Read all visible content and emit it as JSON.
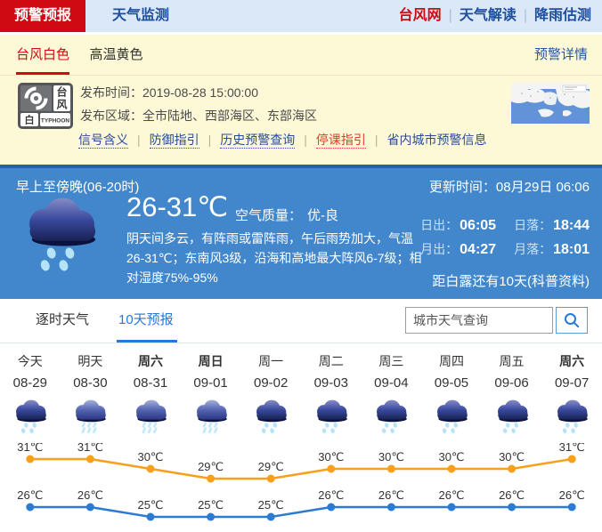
{
  "nav": {
    "separator": "|",
    "tabs": [
      {
        "label": "预警预报",
        "active": true
      },
      {
        "label": "天气监测",
        "active": false
      }
    ],
    "links": [
      "台风网",
      "天气解读",
      "降雨估测"
    ]
  },
  "warning": {
    "tabs": [
      {
        "label": "台风白色",
        "active": true
      },
      {
        "label": "高温黄色",
        "active": false
      }
    ],
    "detail_link": "预警详情",
    "icon": {
      "char_top": "台",
      "char_mid": "风",
      "char_bottom_left": "白",
      "char_bottom_right": "TYPHOON"
    },
    "publish": [
      {
        "label": "发布时间：",
        "value": "2019-08-28 15:00:00"
      },
      {
        "label": "发布区域：",
        "value": "全市陆地、西部海区、东部海区"
      }
    ],
    "links_separator": "|",
    "links": [
      {
        "label": "信号含义",
        "style": "dotblue"
      },
      {
        "label": "防御指引",
        "style": "dotblue"
      },
      {
        "label": "历史预警查询",
        "style": "dotblue"
      },
      {
        "label": "停课指引",
        "style": "dotred"
      },
      {
        "label": "省内城市预警信息",
        "style": "plainblue"
      }
    ]
  },
  "current": {
    "period": "早上至傍晚(06-20时)",
    "update_label": "更新时间：",
    "update_time": "08月29日 06:06",
    "temp_range": "26-31℃",
    "air_quality_label": "空气质量：",
    "air_quality_value": "优-良",
    "description": "阴天间多云，有阵雨或雷阵雨，午后雨势加大，气温26-31℃；东南风3级，沿海和高地最大阵风6-7级；相对湿度75%-95%",
    "sun_moon": [
      {
        "label": "日出：",
        "value": "06:05"
      },
      {
        "label": "日落：",
        "value": "18:44"
      },
      {
        "label": "月出：",
        "value": "04:27"
      },
      {
        "label": "月落：",
        "value": "18:01"
      }
    ],
    "note": "距白露还有10天(科普资料)"
  },
  "forecast": {
    "tabs": [
      {
        "label": "逐时天气",
        "active": false
      },
      {
        "label": "10天预报",
        "active": true
      }
    ],
    "search": {
      "placeholder": "城市天气查询"
    }
  },
  "chart_data": {
    "type": "line",
    "title": "10天预报",
    "categories": [
      "今天",
      "明天",
      "周六",
      "周日",
      "周一",
      "周二",
      "周三",
      "周四",
      "周五",
      "周六"
    ],
    "dates": [
      "08-29",
      "08-30",
      "08-31",
      "09-01",
      "09-02",
      "09-03",
      "09-04",
      "09-05",
      "09-06",
      "09-07"
    ],
    "weekend_bold": [
      false,
      false,
      true,
      true,
      false,
      false,
      false,
      false,
      false,
      true
    ],
    "icons": [
      "shower",
      "heavy-rain",
      "heavy-rain",
      "heavy-rain",
      "shower",
      "shower",
      "shower",
      "shower",
      "shower",
      "shower"
    ],
    "unit": "℃",
    "series": [
      {
        "name": "high",
        "color": "#f9a01b",
        "values": [
          31,
          31,
          30,
          29,
          29,
          30,
          30,
          30,
          30,
          31
        ]
      },
      {
        "name": "low",
        "color": "#2b7bd4",
        "values": [
          26,
          26,
          25,
          25,
          25,
          26,
          26,
          26,
          26,
          26
        ]
      }
    ],
    "ylim": [
      25,
      31
    ],
    "grid": false,
    "legend_position": "none"
  },
  "colors": {
    "accent_red": "#d00a12",
    "link_blue": "#2255a4",
    "panel_blue": "#4287cb",
    "topbar_bg": "#dbe8f8",
    "section_yellow": "#fdf9d7",
    "high_line": "#f9a01b",
    "low_line": "#2b7bd4"
  }
}
